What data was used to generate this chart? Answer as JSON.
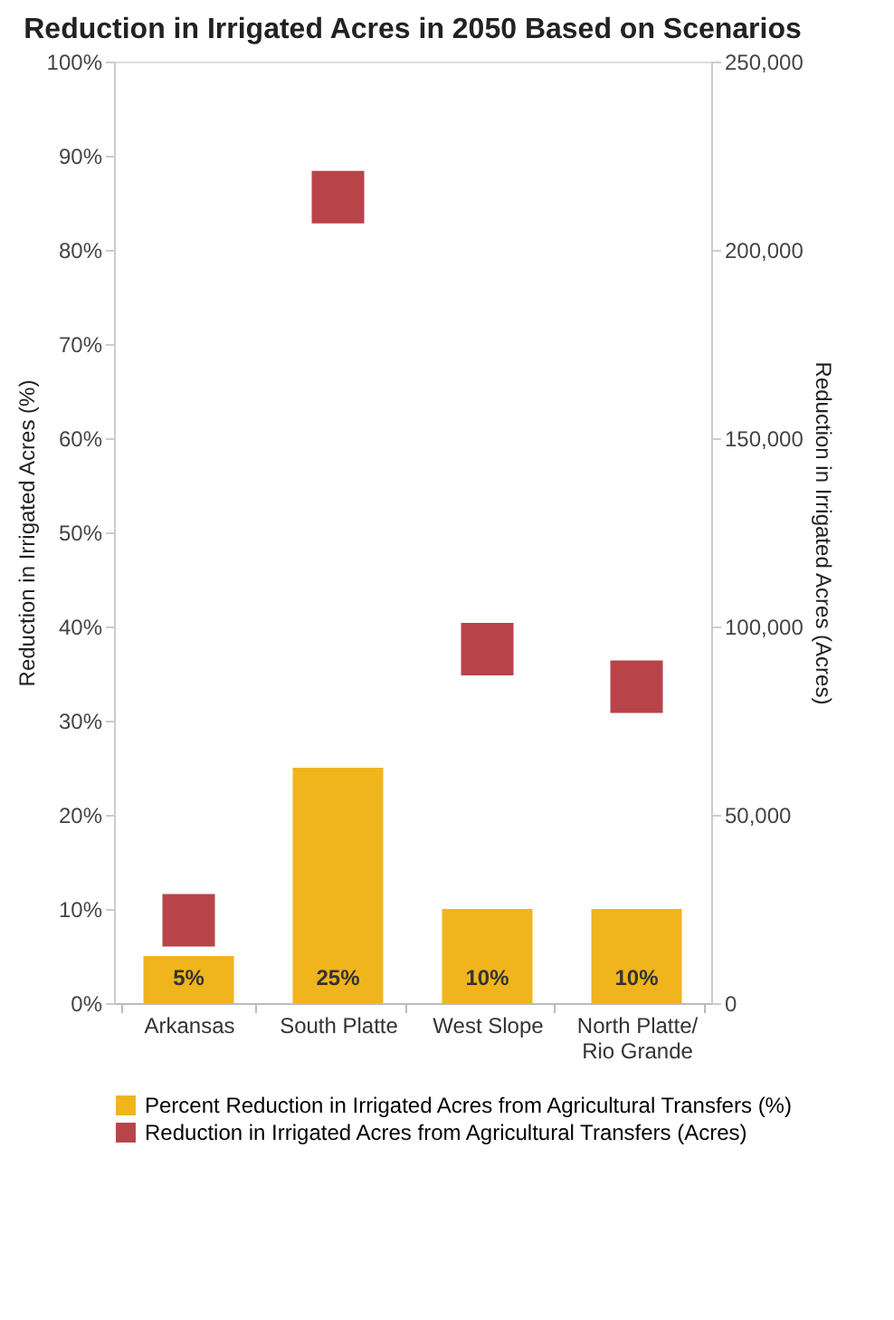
{
  "chart_data": {
    "type": "bar",
    "title": "Reduction in Irrigated Acres in 2050 Based on Scenarios",
    "ylabel": "Reduction in Irrigated Acres (%)",
    "y2label": "Reduction in Irrigated Acres (Acres)",
    "categories": [
      "Arkansas",
      "South Platte",
      "West Slope",
      "North Platte/ Rio Grande"
    ],
    "series": [
      {
        "name": "Percent Reduction in Irrigated Acres from Agricultural Transfers (%)",
        "color": "#f0b41c",
        "values": [
          5,
          25,
          10,
          10
        ],
        "value_labels": [
          "5%",
          "25%",
          "10%",
          "10%"
        ]
      },
      {
        "name": "Reduction in Irrigated Acres from Agricultural Transfers (Acres)",
        "type": "scatter",
        "marker": "square",
        "axis": "y2",
        "color": "#b8444a",
        "values": [
          22000,
          214000,
          94000,
          84000
        ]
      }
    ],
    "ylim": [
      0,
      100
    ],
    "yticks": [
      {
        "value": 0,
        "label": "0%"
      },
      {
        "value": 10,
        "label": "10%"
      },
      {
        "value": 20,
        "label": "20%"
      },
      {
        "value": 30,
        "label": "30%"
      },
      {
        "value": 40,
        "label": "40%"
      },
      {
        "value": 50,
        "label": "50%"
      },
      {
        "value": 60,
        "label": "60%"
      },
      {
        "value": 70,
        "label": "70%"
      },
      {
        "value": 80,
        "label": "80%"
      },
      {
        "value": 90,
        "label": "90%"
      },
      {
        "value": 100,
        "label": "100%"
      }
    ],
    "y2lim": [
      0,
      250000
    ],
    "y2ticks": [
      0,
      {
        "value": 50000,
        "label": "50,000"
      },
      {
        "value": 100000,
        "label": "100,000"
      },
      {
        "value": 150000,
        "label": "150,000"
      },
      {
        "value": 200000,
        "label": "200,000"
      },
      {
        "value": 250000,
        "label": "250,000"
      }
    ],
    "legend": "bottom",
    "grid": false
  }
}
